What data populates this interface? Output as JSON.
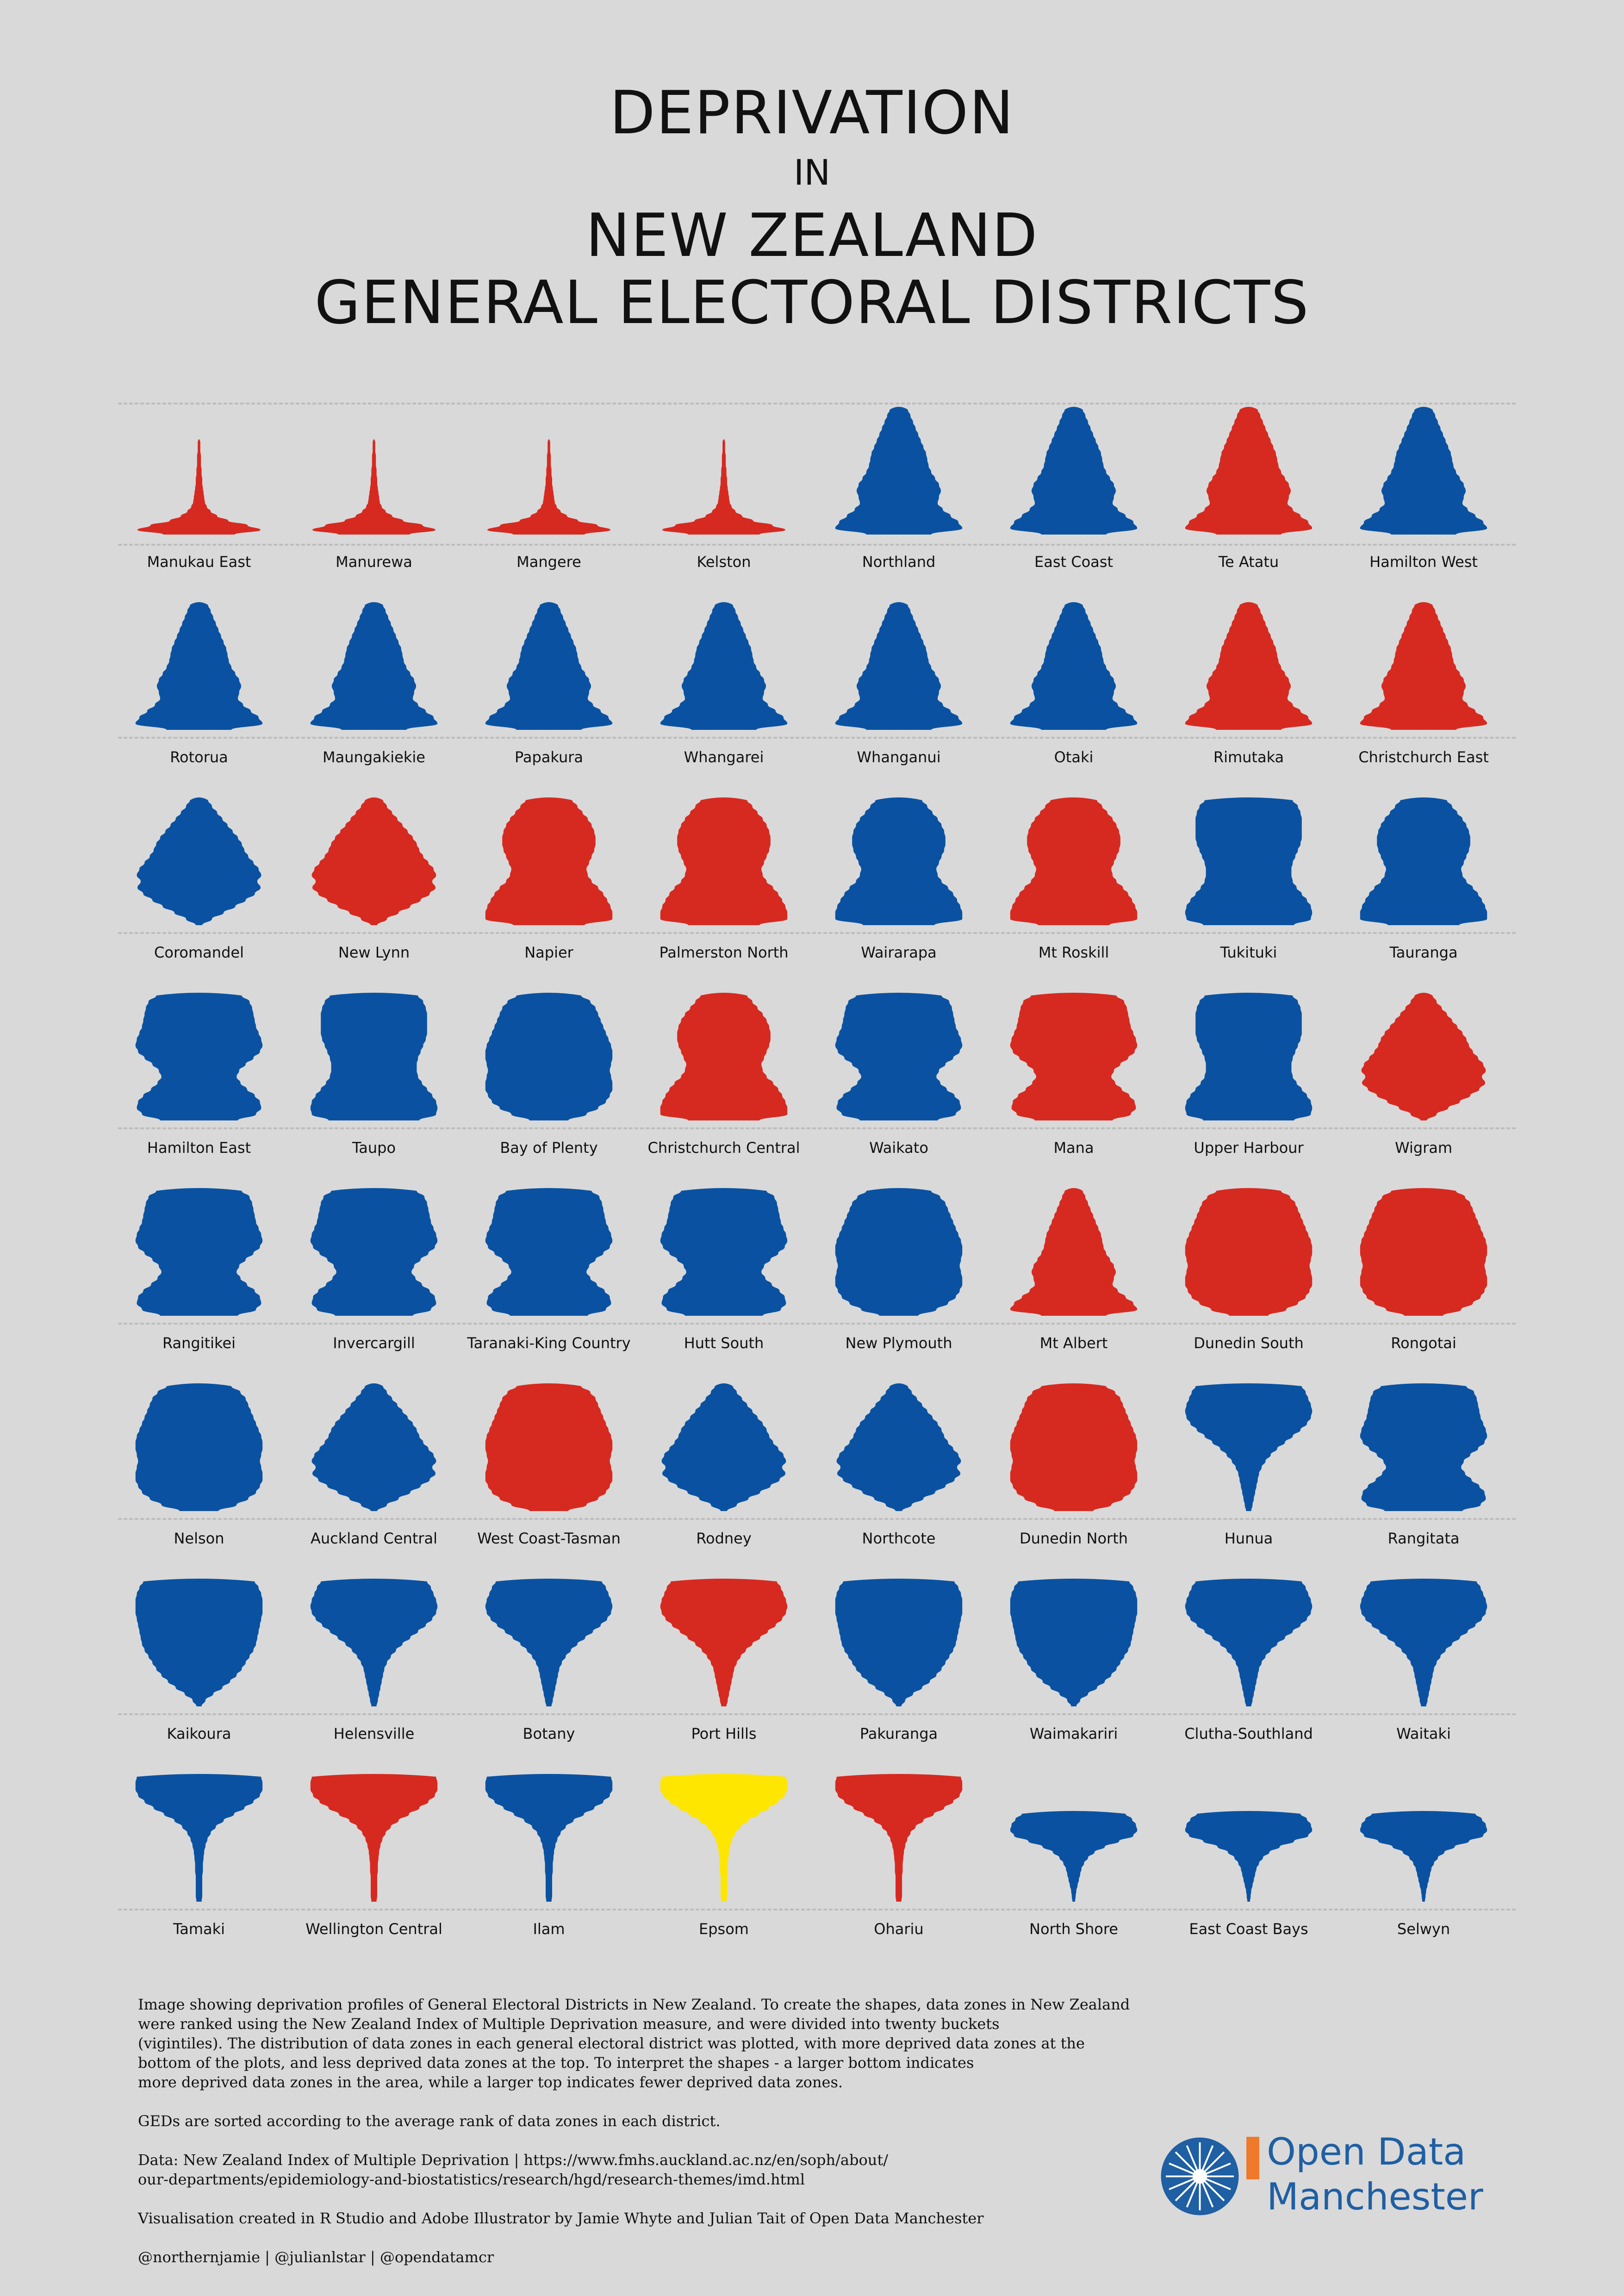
{
  "title": {
    "line1": "DEPRIVATION",
    "line2": "IN",
    "line3": "NEW ZEALAND",
    "line4": "GENERAL ELECTORAL DISTRICTS"
  },
  "colors": {
    "background": "#d9d9d9",
    "blue": "#0a52a1",
    "red": "#d62a21",
    "yellow": "#ffe600",
    "orange": "#f07a2b"
  },
  "districts": [
    {
      "name": "Manukau East",
      "color": "red",
      "shape": "spike"
    },
    {
      "name": "Manurewa",
      "color": "red",
      "shape": "spike"
    },
    {
      "name": "Mangere",
      "color": "red",
      "shape": "spike"
    },
    {
      "name": "Kelston",
      "color": "red",
      "shape": "spike"
    },
    {
      "name": "Northland",
      "color": "blue",
      "shape": "bell"
    },
    {
      "name": "East Coast",
      "color": "blue",
      "shape": "bell"
    },
    {
      "name": "Te Atatu",
      "color": "red",
      "shape": "bell"
    },
    {
      "name": "Hamilton West",
      "color": "blue",
      "shape": "bell"
    },
    {
      "name": "Rotorua",
      "color": "blue",
      "shape": "bell"
    },
    {
      "name": "Maungakiekie",
      "color": "blue",
      "shape": "bell"
    },
    {
      "name": "Papakura",
      "color": "blue",
      "shape": "bell"
    },
    {
      "name": "Whangarei",
      "color": "blue",
      "shape": "bell"
    },
    {
      "name": "Whanganui",
      "color": "blue",
      "shape": "bell"
    },
    {
      "name": "Otaki",
      "color": "blue",
      "shape": "bell"
    },
    {
      "name": "Rimutaka",
      "color": "red",
      "shape": "bell"
    },
    {
      "name": "Christchurch East",
      "color": "red",
      "shape": "bell"
    },
    {
      "name": "Coromandel",
      "color": "blue",
      "shape": "diamond"
    },
    {
      "name": "New Lynn",
      "color": "red",
      "shape": "diamond"
    },
    {
      "name": "Napier",
      "color": "red",
      "shape": "pear"
    },
    {
      "name": "Palmerston North",
      "color": "red",
      "shape": "pear"
    },
    {
      "name": "Wairarapa",
      "color": "blue",
      "shape": "pear"
    },
    {
      "name": "Mt Roskill",
      "color": "red",
      "shape": "pear"
    },
    {
      "name": "Tukituki",
      "color": "blue",
      "shape": "block"
    },
    {
      "name": "Tauranga",
      "color": "blue",
      "shape": "pear"
    },
    {
      "name": "Hamilton East",
      "color": "blue",
      "shape": "hour"
    },
    {
      "name": "Taupo",
      "color": "blue",
      "shape": "block"
    },
    {
      "name": "Bay of Plenty",
      "color": "blue",
      "shape": "round"
    },
    {
      "name": "Christchurch Central",
      "color": "red",
      "shape": "pear"
    },
    {
      "name": "Waikato",
      "color": "blue",
      "shape": "hour"
    },
    {
      "name": "Mana",
      "color": "red",
      "shape": "hour"
    },
    {
      "name": "Upper Harbour",
      "color": "blue",
      "shape": "block"
    },
    {
      "name": "Wigram",
      "color": "red",
      "shape": "diamond"
    },
    {
      "name": "Rangitikei",
      "color": "blue",
      "shape": "hour"
    },
    {
      "name": "Invercargill",
      "color": "blue",
      "shape": "hour"
    },
    {
      "name": "Taranaki-King Country",
      "color": "blue",
      "shape": "hour"
    },
    {
      "name": "Hutt South",
      "color": "blue",
      "shape": "hour"
    },
    {
      "name": "New Plymouth",
      "color": "blue",
      "shape": "round"
    },
    {
      "name": "Mt Albert",
      "color": "red",
      "shape": "bell"
    },
    {
      "name": "Dunedin South",
      "color": "red",
      "shape": "round"
    },
    {
      "name": "Rongotai",
      "color": "red",
      "shape": "round"
    },
    {
      "name": "Nelson",
      "color": "blue",
      "shape": "round"
    },
    {
      "name": "Auckland Central",
      "color": "blue",
      "shape": "diamond"
    },
    {
      "name": "West Coast-Tasman",
      "color": "red",
      "shape": "round"
    },
    {
      "name": "Rodney",
      "color": "blue",
      "shape": "diamond"
    },
    {
      "name": "Northcote",
      "color": "blue",
      "shape": "diamond"
    },
    {
      "name": "Dunedin North",
      "color": "red",
      "shape": "round"
    },
    {
      "name": "Hunua",
      "color": "blue",
      "shape": "funnel"
    },
    {
      "name": "Rangitata",
      "color": "blue",
      "shape": "hour"
    },
    {
      "name": "Kaikoura",
      "color": "blue",
      "shape": "top"
    },
    {
      "name": "Helensville",
      "color": "blue",
      "shape": "funnel"
    },
    {
      "name": "Botany",
      "color": "blue",
      "shape": "funnel"
    },
    {
      "name": "Port Hills",
      "color": "red",
      "shape": "funnel"
    },
    {
      "name": "Pakuranga",
      "color": "blue",
      "shape": "top"
    },
    {
      "name": "Waimakariri",
      "color": "blue",
      "shape": "top"
    },
    {
      "name": "Clutha-Southland",
      "color": "blue",
      "shape": "funnel"
    },
    {
      "name": "Waitaki",
      "color": "blue",
      "shape": "funnel"
    },
    {
      "name": "Tamaki",
      "color": "blue",
      "shape": "stem"
    },
    {
      "name": "Wellington Central",
      "color": "red",
      "shape": "stem"
    },
    {
      "name": "Ilam",
      "color": "blue",
      "shape": "stem"
    },
    {
      "name": "Epsom",
      "color": "yellow",
      "shape": "stem"
    },
    {
      "name": "Ohariu",
      "color": "red",
      "shape": "stem"
    },
    {
      "name": "North Shore",
      "color": "blue",
      "shape": "flat"
    },
    {
      "name": "East Coast Bays",
      "color": "blue",
      "shape": "flat"
    },
    {
      "name": "Selwyn",
      "color": "blue",
      "shape": "flat"
    }
  ],
  "description": {
    "p1": "Image showing deprivation profiles of General Electoral Districts in New Zealand. To create the shapes, data zones in New Zealand\nwere ranked using the New Zealand Index of Multiple Deprivation measure, and were divided into twenty buckets\n(vigintiles). The distribution of data zones in each general electoral district was plotted, with more deprived data zones at the\nbottom of the plots, and less deprived data zones at the top. To interpret the shapes - a larger bottom indicates\nmore deprived data zones in the area, while a larger top indicates fewer deprived data zones.",
    "p2": "GEDs are sorted according to the average rank of data zones in each district.",
    "p3": "Data: New Zealand Index of Multiple Deprivation | https://www.fmhs.auckland.ac.nz/en/soph/about/\nour-departments/epidemiology-and-biostatistics/research/hgd/research-themes/imd.html",
    "p4": "Visualisation created in R Studio and Adobe Illustrator by Jamie Whyte and Julian Tait of Open Data Manchester",
    "p5": "@northernjamie | @julianlstar | @opendatamcr"
  },
  "logo": {
    "line1": "Open Data",
    "line2": "Manchester"
  }
}
